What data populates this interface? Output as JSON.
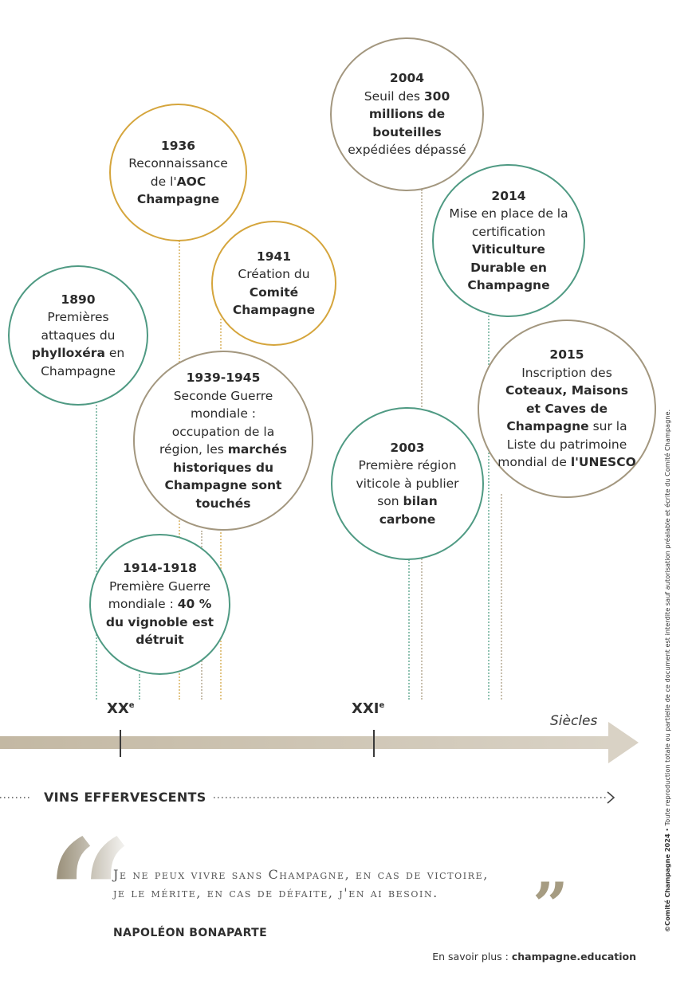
{
  "events": {
    "e1890": {
      "year": "1890",
      "desc_a": "Premières attaques du ",
      "desc_b": "phylloxéra",
      "desc_c": " en Champagne"
    },
    "e1914": {
      "year": "1914-1918",
      "desc_a": "Première Guerre mondiale : ",
      "desc_b": "40 % du vignoble est détruit"
    },
    "e1936": {
      "year": "1936",
      "desc_a": "Reconnaissance de l'",
      "desc_b": "AOC Champagne"
    },
    "e1941": {
      "year": "1941",
      "desc_a": "Création du ",
      "desc_b": "Comité Champagne"
    },
    "e1939": {
      "year": "1939-1945",
      "desc_a": "Seconde Guerre mondiale : occupation de la région, les ",
      "desc_b": "marchés historiques du Champagne sont touchés"
    },
    "e2003": {
      "year": "2003",
      "desc_a": "Première région viticole à publier son ",
      "desc_b": "bilan carbone"
    },
    "e2004": {
      "year": "2004",
      "desc_a": "Seuil des ",
      "desc_b": "300 millions de bouteilles",
      "desc_c": " expédiées dépassé"
    },
    "e2014": {
      "year": "2014",
      "desc_a": "Mise en place de la certification ",
      "desc_b": "Viticulture Durable en Champagne"
    },
    "e2015": {
      "year": "2015",
      "desc_a": "Inscription des ",
      "desc_b": "Coteaux, Maisons et Caves de Champagne",
      "desc_c": " sur la Liste du patrimoine mondial de ",
      "desc_d": "l'UNESCO"
    }
  },
  "timeline": {
    "c20_main": "XX",
    "c20_sup": "e",
    "c21_main": "XXI",
    "c21_sup": "e",
    "axis_label": "Siècles",
    "vins_label": "VINS EFFERVESCENTS"
  },
  "quote": {
    "open_mark": "“",
    "close_mark": "”",
    "line1": "Je ne peux vivre sans Champagne, en cas de victoire,",
    "line2": "je le mérite, en cas de défaite, j'en ai besoin.",
    "author": "NAPOLÉON BONAPARTE"
  },
  "footer": {
    "more_prefix": "En savoir plus : ",
    "more_link": "champagne.education",
    "copyright_bold": "©Comité Champagne 2024",
    "copyright_rest": " • Toute reproduction totale ou partielle de ce document est interdite sauf autorisation préalable et écrite du Comité Champagne."
  },
  "colors": {
    "green": "#4f9a83",
    "gold": "#d5a53c",
    "taupe": "#a3977f",
    "arrow": "#c9bfae",
    "text": "#2b2b2b"
  }
}
